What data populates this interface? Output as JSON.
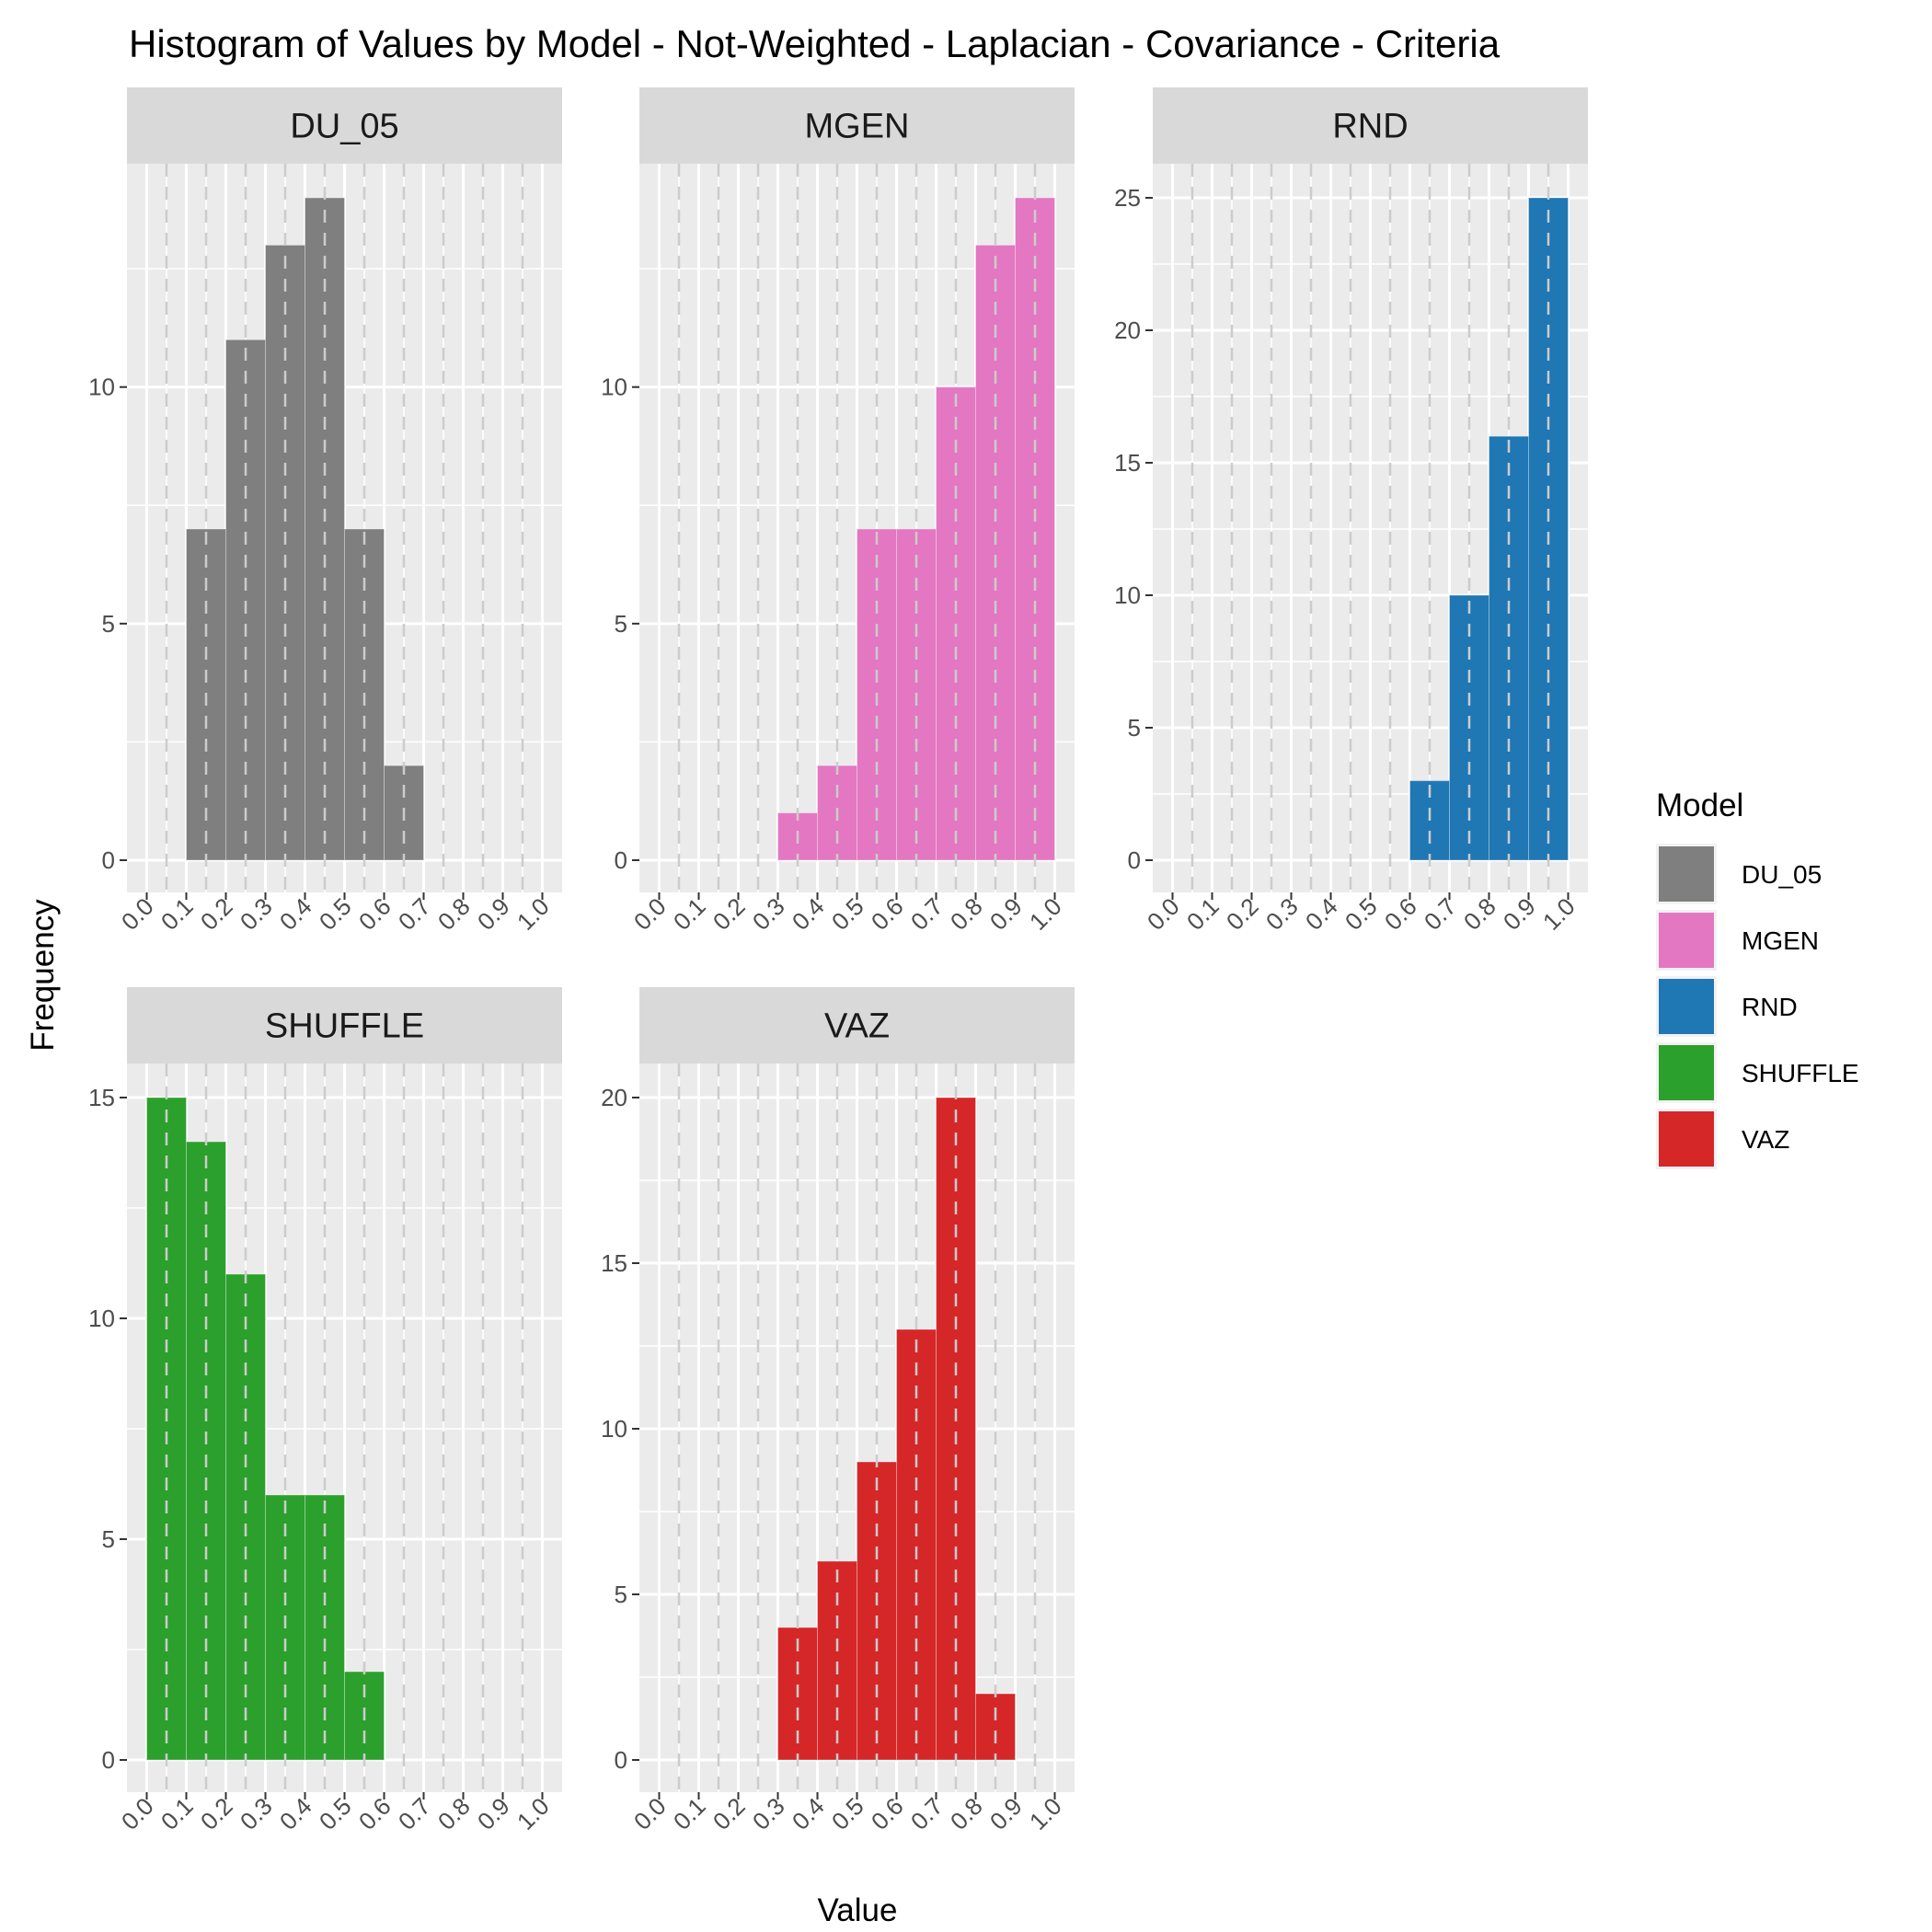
{
  "chart_data": {
    "type": "bar",
    "title": "Histogram of Values by Model - Not-Weighted - Laplacian - Covariance - Criteria",
    "xlabel": "Value",
    "ylabel": "Frequency",
    "xlim": [
      0,
      1
    ],
    "x_ticks": [
      "0.0",
      "0.1",
      "0.2",
      "0.3",
      "0.4",
      "0.5",
      "0.6",
      "0.7",
      "0.8",
      "0.9",
      "1.0"
    ],
    "bin_width": 0.1,
    "grid": true,
    "legend": {
      "title": "Model",
      "position": "right"
    },
    "panels": [
      {
        "name": "DU_05",
        "color": "#7f7f7f",
        "ylim": [
          0,
          14
        ],
        "y_ticks": [
          0,
          5,
          10
        ],
        "bins": [
          {
            "x0": 0.1,
            "x1": 0.2,
            "count": 7
          },
          {
            "x0": 0.2,
            "x1": 0.3,
            "count": 11
          },
          {
            "x0": 0.3,
            "x1": 0.4,
            "count": 13
          },
          {
            "x0": 0.4,
            "x1": 0.5,
            "count": 14
          },
          {
            "x0": 0.5,
            "x1": 0.6,
            "count": 7
          },
          {
            "x0": 0.6,
            "x1": 0.7,
            "count": 2
          }
        ]
      },
      {
        "name": "MGEN",
        "color": "#e377c2",
        "ylim": [
          0,
          14
        ],
        "y_ticks": [
          0,
          5,
          10
        ],
        "bins": [
          {
            "x0": 0.3,
            "x1": 0.4,
            "count": 1
          },
          {
            "x0": 0.4,
            "x1": 0.5,
            "count": 2
          },
          {
            "x0": 0.5,
            "x1": 0.6,
            "count": 7
          },
          {
            "x0": 0.6,
            "x1": 0.7,
            "count": 7
          },
          {
            "x0": 0.7,
            "x1": 0.8,
            "count": 10
          },
          {
            "x0": 0.8,
            "x1": 0.9,
            "count": 13
          },
          {
            "x0": 0.9,
            "x1": 1.0,
            "count": 14
          }
        ]
      },
      {
        "name": "RND",
        "color": "#1f77b4",
        "ylim": [
          0,
          25
        ],
        "y_ticks": [
          0,
          5,
          10,
          15,
          20,
          25
        ],
        "bins": [
          {
            "x0": 0.6,
            "x1": 0.7,
            "count": 3
          },
          {
            "x0": 0.7,
            "x1": 0.8,
            "count": 10
          },
          {
            "x0": 0.8,
            "x1": 0.9,
            "count": 16
          },
          {
            "x0": 0.9,
            "x1": 1.0,
            "count": 25
          }
        ]
      },
      {
        "name": "SHUFFLE",
        "color": "#2ca02c",
        "ylim": [
          0,
          15
        ],
        "y_ticks": [
          0,
          5,
          10,
          15
        ],
        "bins": [
          {
            "x0": 0.0,
            "x1": 0.1,
            "count": 15
          },
          {
            "x0": 0.1,
            "x1": 0.2,
            "count": 14
          },
          {
            "x0": 0.2,
            "x1": 0.3,
            "count": 11
          },
          {
            "x0": 0.3,
            "x1": 0.4,
            "count": 6
          },
          {
            "x0": 0.4,
            "x1": 0.5,
            "count": 6
          },
          {
            "x0": 0.5,
            "x1": 0.6,
            "count": 2
          }
        ]
      },
      {
        "name": "VAZ",
        "color": "#d62728",
        "ylim": [
          0,
          20
        ],
        "y_ticks": [
          0,
          5,
          10,
          15,
          20
        ],
        "bins": [
          {
            "x0": 0.3,
            "x1": 0.4,
            "count": 4
          },
          {
            "x0": 0.4,
            "x1": 0.5,
            "count": 6
          },
          {
            "x0": 0.5,
            "x1": 0.6,
            "count": 9
          },
          {
            "x0": 0.6,
            "x1": 0.7,
            "count": 13
          },
          {
            "x0": 0.7,
            "x1": 0.8,
            "count": 20
          },
          {
            "x0": 0.8,
            "x1": 0.9,
            "count": 2
          }
        ]
      }
    ]
  }
}
